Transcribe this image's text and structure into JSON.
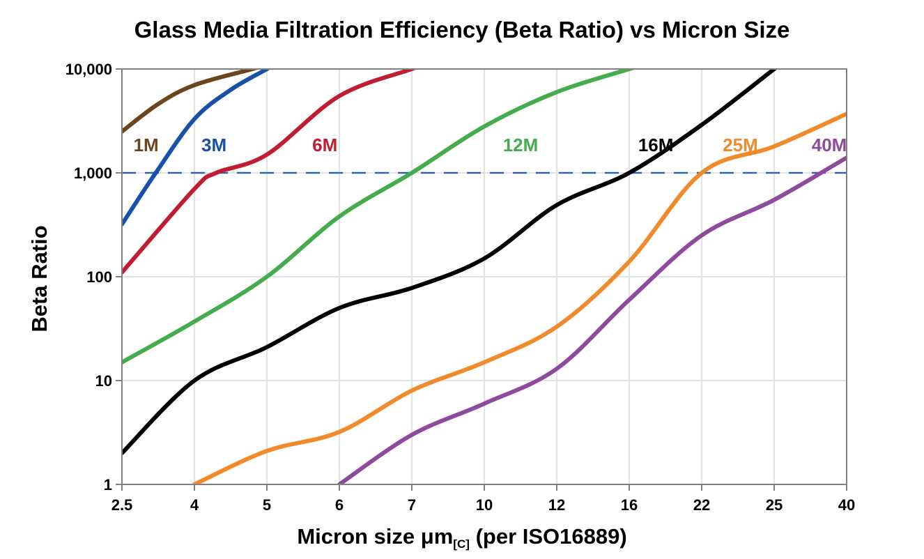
{
  "chart_data": {
    "type": "line",
    "title": "Glass Media Filtration Efficiency (Beta Ratio) vs Micron Size",
    "ylabel": "Beta Ratio",
    "xlabel": "Micron size μm[C] (per ISO16889)",
    "xlabel_parts": {
      "main": "Micron size μm",
      "sub": "[C]",
      "rest": " (per ISO16889)"
    },
    "x_scale": "categorical",
    "y_scale": "log",
    "ylim": [
      1,
      10000
    ],
    "x_ticks": [
      "2.5",
      "4",
      "5",
      "6",
      "7",
      "10",
      "12",
      "16",
      "22",
      "25",
      "40"
    ],
    "x_tick_values": [
      2.5,
      4,
      5,
      6,
      7,
      10,
      12,
      16,
      22,
      25,
      40
    ],
    "y_ticks": [
      "1",
      "10",
      "100",
      "1,000",
      "10,000"
    ],
    "y_tick_values": [
      1,
      10,
      100,
      1000,
      10000
    ],
    "grid": true,
    "legend_position": "inline-labels",
    "reference_line": {
      "value": 1000,
      "style": "dashed",
      "color": "#2E64AE"
    },
    "frame_color": "#808080",
    "grid_color": "#D9D9D9",
    "series": [
      {
        "name": "1M",
        "color": "#6B451C",
        "label": {
          "x": 3.0,
          "y": 1850
        },
        "points": [
          [
            2.5,
            2500
          ],
          [
            3.25,
            4600
          ],
          [
            4,
            7000
          ],
          [
            4.8,
            10000
          ]
        ]
      },
      {
        "name": "3M",
        "color": "#1A51A8",
        "label": {
          "x": 4.27,
          "y": 1850
        },
        "points": [
          [
            2.5,
            320
          ],
          [
            3.2,
            1000
          ],
          [
            4,
            3300
          ],
          [
            4.5,
            6300
          ],
          [
            5,
            10000
          ]
        ]
      },
      {
        "name": "6M",
        "color": "#C01D33",
        "label": {
          "x": 5.8,
          "y": 1850
        },
        "points": [
          [
            2.5,
            110
          ],
          [
            4,
            700
          ],
          [
            4.3,
            1000
          ],
          [
            5,
            1500
          ],
          [
            6,
            5500
          ],
          [
            7,
            10000
          ]
        ]
      },
      {
        "name": "12M",
        "color": "#44AC4C",
        "label": {
          "x": 11,
          "y": 1850
        },
        "points": [
          [
            2.5,
            15
          ],
          [
            4,
            37
          ],
          [
            5,
            100
          ],
          [
            6,
            380
          ],
          [
            7,
            1000
          ],
          [
            10,
            2800
          ],
          [
            12,
            6000
          ],
          [
            16,
            10000
          ]
        ]
      },
      {
        "name": "16M",
        "color": "#000000",
        "label": {
          "x": 18.2,
          "y": 1850
        },
        "points": [
          [
            2.5,
            2
          ],
          [
            4,
            10
          ],
          [
            5,
            21
          ],
          [
            6,
            50
          ],
          [
            7,
            78
          ],
          [
            10,
            150
          ],
          [
            12,
            490
          ],
          [
            16,
            1000
          ],
          [
            22,
            2900
          ],
          [
            25,
            10000
          ]
        ]
      },
      {
        "name": "25M",
        "color": "#F18A2B",
        "label": {
          "x": 23.6,
          "y": 1850
        },
        "points": [
          [
            4,
            1
          ],
          [
            5,
            2.1
          ],
          [
            6,
            3.2
          ],
          [
            7,
            8
          ],
          [
            10,
            15
          ],
          [
            12,
            33
          ],
          [
            16,
            140
          ],
          [
            22,
            1000
          ],
          [
            25,
            1800
          ],
          [
            40,
            3700
          ]
        ]
      },
      {
        "name": "40M",
        "color": "#8E4B9E",
        "label": {
          "x": 36.4,
          "y": 1850
        },
        "points": [
          [
            6,
            1
          ],
          [
            7,
            3
          ],
          [
            10,
            6
          ],
          [
            12,
            13
          ],
          [
            16,
            60
          ],
          [
            22,
            250
          ],
          [
            25,
            550
          ],
          [
            40,
            1400
          ]
        ]
      }
    ]
  }
}
